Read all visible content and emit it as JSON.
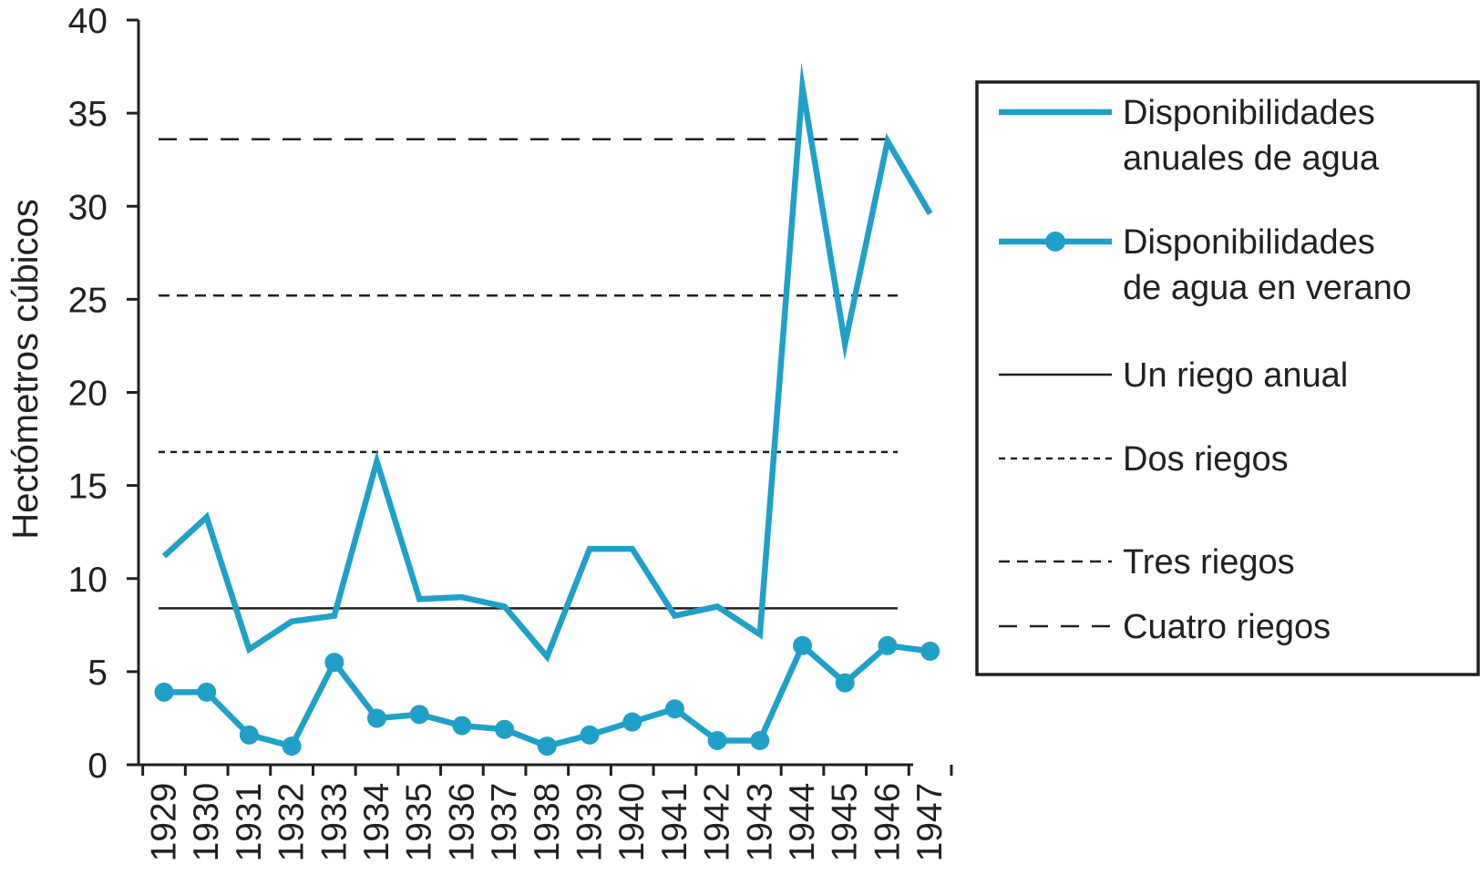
{
  "chart_data": {
    "type": "line",
    "title": "",
    "xlabel": "",
    "ylabel": "Hectómetros cúbicos",
    "ylim": [
      0,
      40
    ],
    "yticks": [
      "0",
      "5",
      "10",
      "15",
      "20",
      "25",
      "30",
      "35",
      "40"
    ],
    "categories": [
      "1929",
      "1930",
      "1931",
      "1932",
      "1933",
      "1934",
      "1935",
      "1936",
      "1937",
      "1938",
      "1939",
      "1940",
      "1941",
      "1942",
      "1943",
      "1944",
      "1945",
      "1946",
      "1947"
    ],
    "series": [
      {
        "name": "Disponibilidades anuales de agua",
        "legend_lines": [
          "Disponibilidades",
          "anuales de agua"
        ],
        "marker": "none",
        "color": "#1fa0c9",
        "values": [
          11.2,
          13.3,
          6.2,
          7.7,
          8.0,
          16.3,
          8.9,
          9.0,
          8.5,
          5.8,
          11.6,
          11.6,
          8.0,
          8.5,
          7.0,
          36.4,
          22.6,
          33.5,
          29.6
        ]
      },
      {
        "name": "Disponibilidades de agua en verano",
        "legend_lines": [
          "Disponibilidades",
          "de agua en verano"
        ],
        "marker": "circle",
        "color": "#1fa0c9",
        "values": [
          3.9,
          3.9,
          1.6,
          1.0,
          5.5,
          2.5,
          2.7,
          2.1,
          1.9,
          1.0,
          1.6,
          2.3,
          3.0,
          1.3,
          1.3,
          6.4,
          4.4,
          6.4,
          6.1
        ]
      }
    ],
    "reference_lines": [
      {
        "name": "Un riego anual",
        "value": 8.4,
        "style": "solid"
      },
      {
        "name": "Dos riegos",
        "value": 16.8,
        "style": "dotted"
      },
      {
        "name": "Tres riegos",
        "value": 25.2,
        "style": "dashed"
      },
      {
        "name": "Cuatro riegos",
        "value": 33.6,
        "style": "longdash"
      }
    ],
    "legend_position": "right",
    "grid": false
  }
}
